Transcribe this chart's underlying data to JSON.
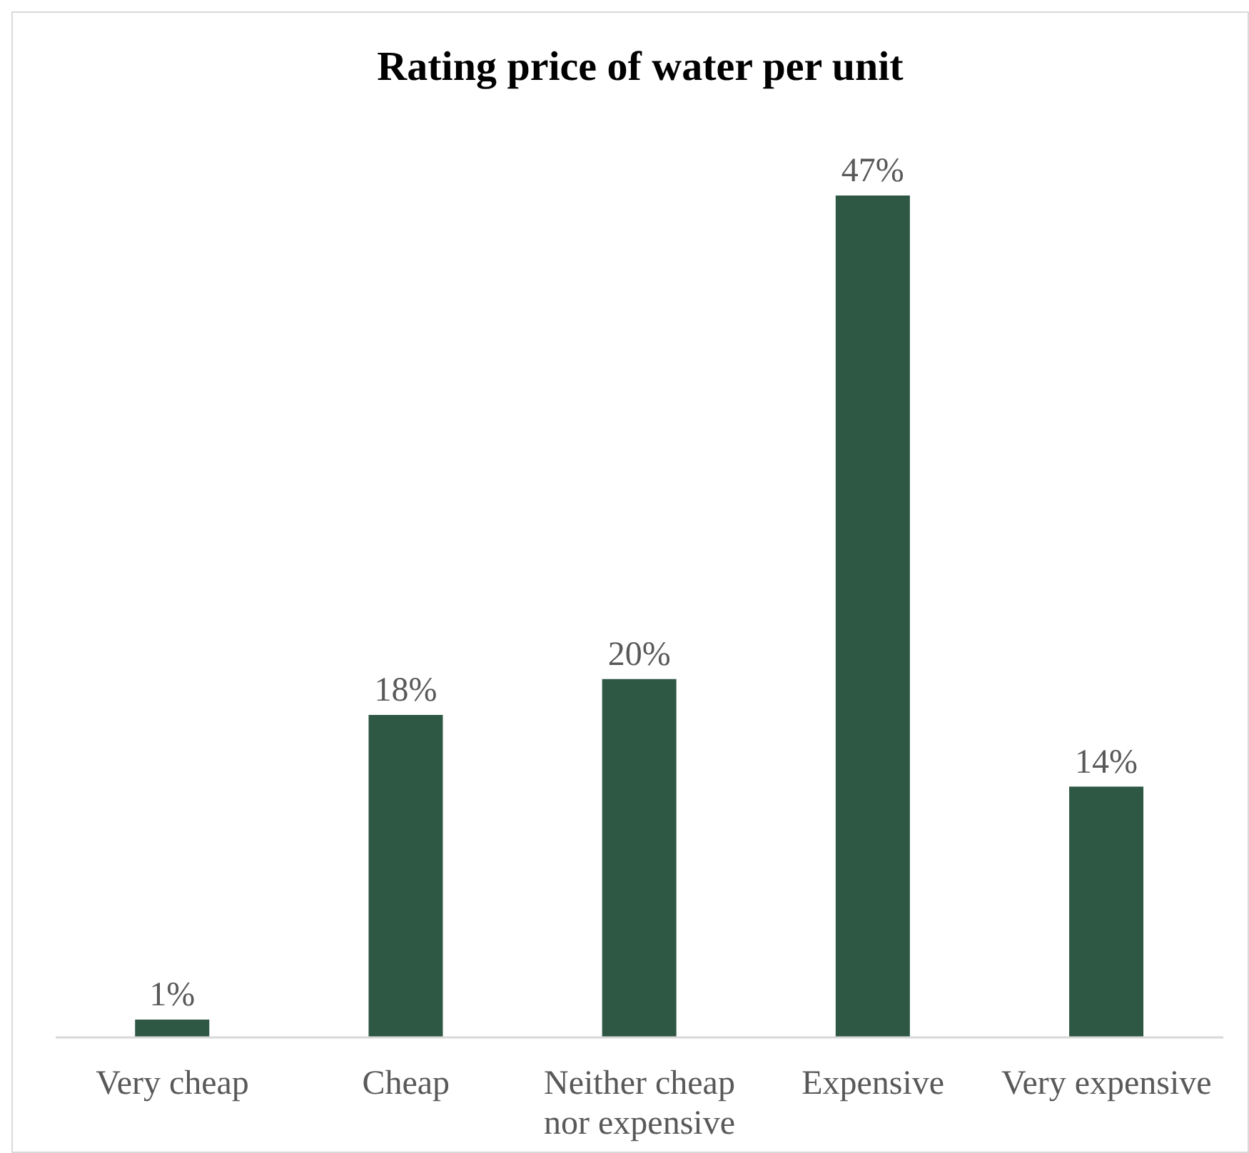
{
  "chart_data": {
    "type": "bar",
    "title": "Rating price of water per unit",
    "categories": [
      "Very cheap",
      "Cheap",
      "Neither cheap nor expensive",
      "Expensive",
      "Very expensive"
    ],
    "values": [
      1,
      18,
      20,
      47,
      14
    ],
    "value_labels": [
      "1%",
      "18%",
      "20%",
      "47%",
      "14%"
    ],
    "color": "#2e5744"
  }
}
